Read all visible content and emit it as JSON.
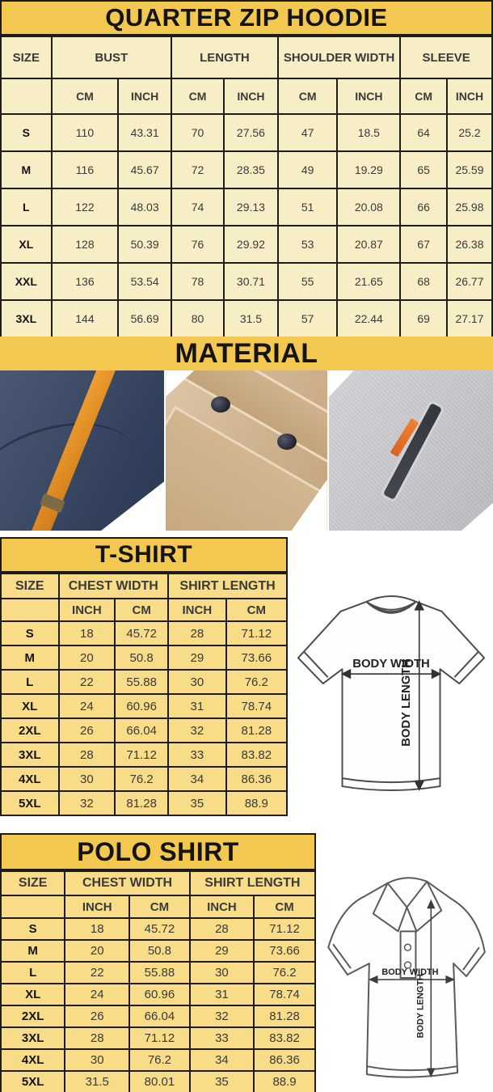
{
  "colors": {
    "header_yellow": "#f3c851",
    "hoodie_row_cream": "#f7eec6",
    "shirt_row_yellow": "#f8dc87",
    "border_black": "#1c1c1c",
    "accent_orange": "#e8932c",
    "fabric_navy": "#3e4c68",
    "fabric_khaki": "#cfb28e",
    "fabric_gray": "#c7c7cc"
  },
  "hoodie_table": {
    "title": "QUARTER ZIP HOODIE",
    "size_header": "SIZE",
    "groups": [
      "BUST",
      "LENGTH",
      "SHOULDER WIDTH",
      "SLEEVE"
    ],
    "units": [
      "CM",
      "INCH",
      "CM",
      "INCH",
      "CM",
      "INCH",
      "CM",
      "INCH"
    ],
    "rows": [
      {
        "size": "S",
        "values": [
          "110",
          "43.31",
          "70",
          "27.56",
          "47",
          "18.5",
          "64",
          "25.2"
        ]
      },
      {
        "size": "M",
        "values": [
          "116",
          "45.67",
          "72",
          "28.35",
          "49",
          "19.29",
          "65",
          "25.59"
        ]
      },
      {
        "size": "L",
        "values": [
          "122",
          "48.03",
          "74",
          "29.13",
          "51",
          "20.08",
          "66",
          "25.98"
        ]
      },
      {
        "size": "XL",
        "values": [
          "128",
          "50.39",
          "76",
          "29.92",
          "53",
          "20.87",
          "67",
          "26.38"
        ]
      },
      {
        "size": "XXL",
        "values": [
          "136",
          "53.54",
          "78",
          "30.71",
          "55",
          "21.65",
          "68",
          "26.77"
        ]
      },
      {
        "size": "3XL",
        "values": [
          "144",
          "56.69",
          "80",
          "31.5",
          "57",
          "22.44",
          "69",
          "27.17"
        ]
      }
    ]
  },
  "material": {
    "title": "MATERIAL",
    "photos": [
      "navy-fleece-with-orange-strap",
      "khaki-fabric-snap-pocket",
      "gray-heather-zip-pocket"
    ]
  },
  "tshirt_table": {
    "title": "T-SHIRT",
    "size_header": "SIZE",
    "groups": [
      "CHEST WIDTH",
      "SHIRT LENGTH"
    ],
    "units": [
      "INCH",
      "CM",
      "INCH",
      "CM"
    ],
    "rows": [
      {
        "size": "S",
        "values": [
          "18",
          "45.72",
          "28",
          "71.12"
        ]
      },
      {
        "size": "M",
        "values": [
          "20",
          "50.8",
          "29",
          "73.66"
        ]
      },
      {
        "size": "L",
        "values": [
          "22",
          "55.88",
          "30",
          "76.2"
        ]
      },
      {
        "size": "XL",
        "values": [
          "24",
          "60.96",
          "31",
          "78.74"
        ]
      },
      {
        "size": "2XL",
        "values": [
          "26",
          "66.04",
          "32",
          "81.28"
        ]
      },
      {
        "size": "3XL",
        "values": [
          "28",
          "71.12",
          "33",
          "83.82"
        ]
      },
      {
        "size": "4XL",
        "values": [
          "30",
          "76.2",
          "34",
          "86.36"
        ]
      },
      {
        "size": "5XL",
        "values": [
          "32",
          "81.28",
          "35",
          "88.9"
        ]
      }
    ],
    "diagram": {
      "width_label": "BODY WIDTH",
      "length_label": "BODY LENGTH"
    }
  },
  "polo_table": {
    "title": "POLO SHIRT",
    "size_header": "SIZE",
    "groups": [
      "CHEST WIDTH",
      "SHIRT LENGTH"
    ],
    "units": [
      "INCH",
      "CM",
      "INCH",
      "CM"
    ],
    "rows": [
      {
        "size": "S",
        "values": [
          "18",
          "45.72",
          "28",
          "71.12"
        ]
      },
      {
        "size": "M",
        "values": [
          "20",
          "50.8",
          "29",
          "73.66"
        ]
      },
      {
        "size": "L",
        "values": [
          "22",
          "55.88",
          "30",
          "76.2"
        ]
      },
      {
        "size": "XL",
        "values": [
          "24",
          "60.96",
          "31",
          "78.74"
        ]
      },
      {
        "size": "2XL",
        "values": [
          "26",
          "66.04",
          "32",
          "81.28"
        ]
      },
      {
        "size": "3XL",
        "values": [
          "28",
          "71.12",
          "33",
          "83.82"
        ]
      },
      {
        "size": "4XL",
        "values": [
          "30",
          "76.2",
          "34",
          "86.36"
        ]
      },
      {
        "size": "5XL",
        "values": [
          "31.5",
          "80.01",
          "35",
          "88.9"
        ]
      }
    ],
    "diagram": {
      "width_label": "BODY WIDTH",
      "length_label": "BODY LENGTH"
    }
  }
}
